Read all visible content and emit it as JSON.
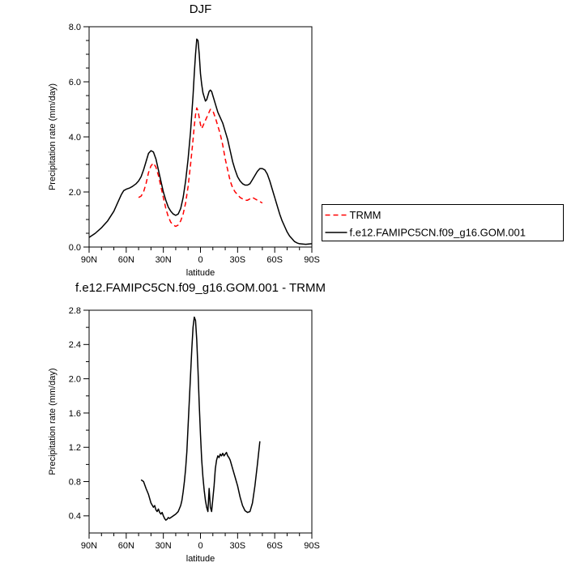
{
  "page": {
    "background": "#ffffff"
  },
  "chart_data": [
    {
      "type": "line",
      "title": "DJF",
      "xlabel": "latitude",
      "ylabel": "Precipitation rate (mm/day)",
      "xlim": [
        90,
        -90
      ],
      "ylim": [
        0.0,
        8.0
      ],
      "grid": false,
      "xminor_step": 10,
      "yminor_step": 0.5,
      "xticks": [
        {
          "v": 90,
          "label": "90N"
        },
        {
          "v": 60,
          "label": "60N"
        },
        {
          "v": 30,
          "label": "30N"
        },
        {
          "v": 0,
          "label": "0"
        },
        {
          "v": -30,
          "label": "30S"
        },
        {
          "v": -60,
          "label": "60S"
        },
        {
          "v": -90,
          "label": "90S"
        }
      ],
      "yticks": [
        {
          "v": 0,
          "label": "0.0"
        },
        {
          "v": 2,
          "label": "2.0"
        },
        {
          "v": 4,
          "label": "4.0"
        },
        {
          "v": 6,
          "label": "6.0"
        },
        {
          "v": 8,
          "label": "8.0"
        }
      ],
      "legend": {
        "show": true,
        "border": true,
        "position": "right-bottom",
        "entries": [
          "TRMM",
          "f.e12.FAMIPC5CN.f09_g16.GOM.001"
        ]
      },
      "series": [
        {
          "name": "TRMM",
          "color": "#ff0000",
          "dashed": true,
          "lat": [
            50,
            48,
            46,
            44,
            42,
            40,
            38,
            36,
            34,
            32,
            30,
            28,
            26,
            24,
            22,
            20,
            18,
            16,
            14,
            12,
            10,
            8,
            6,
            5,
            4,
            3,
            2,
            1,
            0,
            -1,
            -2,
            -4,
            -6,
            -8,
            -10,
            -12,
            -14,
            -16,
            -18,
            -20,
            -22,
            -24,
            -26,
            -28,
            -30,
            -32,
            -34,
            -36,
            -38,
            -40,
            -42,
            -44,
            -46,
            -48,
            -50
          ],
          "values": [
            1.8,
            1.85,
            2.0,
            2.3,
            2.7,
            2.95,
            3.05,
            2.9,
            2.6,
            2.2,
            1.8,
            1.4,
            1.1,
            0.9,
            0.8,
            0.75,
            0.8,
            0.95,
            1.2,
            1.6,
            2.2,
            3.0,
            3.9,
            4.4,
            4.8,
            5.05,
            4.95,
            4.7,
            4.45,
            4.3,
            4.4,
            4.6,
            4.8,
            5.0,
            4.95,
            4.7,
            4.4,
            4.1,
            3.7,
            3.2,
            2.8,
            2.4,
            2.15,
            2.0,
            1.9,
            1.8,
            1.75,
            1.7,
            1.7,
            1.75,
            1.8,
            1.75,
            1.7,
            1.65,
            1.6
          ]
        },
        {
          "name": "f.e12.FAMIPC5CN.f09_g16.GOM.001",
          "color": "#000000",
          "dashed": false,
          "lat": [
            90,
            85,
            80,
            75,
            70,
            67,
            64,
            62,
            60,
            57,
            55,
            52,
            50,
            48,
            46,
            44,
            42,
            40,
            38,
            36,
            34,
            32,
            30,
            28,
            26,
            24,
            22,
            20,
            18,
            16,
            14,
            12,
            10,
            8,
            6,
            5,
            4,
            3,
            2,
            1,
            0,
            -1,
            -2,
            -3,
            -4,
            -5,
            -6,
            -7,
            -8,
            -9,
            -10,
            -12,
            -14,
            -16,
            -18,
            -20,
            -22,
            -24,
            -26,
            -28,
            -30,
            -32,
            -34,
            -36,
            -38,
            -40,
            -42,
            -44,
            -46,
            -48,
            -50,
            -52,
            -54,
            -56,
            -58,
            -60,
            -62,
            -64,
            -66,
            -68,
            -70,
            -72,
            -74,
            -76,
            -78,
            -80,
            -85,
            -90
          ],
          "values": [
            0.35,
            0.5,
            0.7,
            0.95,
            1.3,
            1.6,
            1.9,
            2.05,
            2.1,
            2.15,
            2.2,
            2.3,
            2.4,
            2.55,
            2.8,
            3.1,
            3.4,
            3.5,
            3.45,
            3.2,
            2.8,
            2.4,
            2.0,
            1.7,
            1.45,
            1.3,
            1.2,
            1.15,
            1.2,
            1.4,
            1.8,
            2.4,
            3.2,
            4.2,
            5.5,
            6.3,
            7.0,
            7.55,
            7.5,
            7.0,
            6.3,
            5.9,
            5.6,
            5.45,
            5.3,
            5.35,
            5.5,
            5.65,
            5.7,
            5.65,
            5.5,
            5.2,
            4.9,
            4.7,
            4.5,
            4.2,
            3.9,
            3.5,
            3.1,
            2.8,
            2.55,
            2.4,
            2.3,
            2.25,
            2.25,
            2.3,
            2.45,
            2.6,
            2.75,
            2.85,
            2.85,
            2.8,
            2.65,
            2.4,
            2.1,
            1.8,
            1.5,
            1.2,
            0.95,
            0.75,
            0.55,
            0.4,
            0.3,
            0.2,
            0.15,
            0.12,
            0.1,
            0.12
          ]
        }
      ]
    },
    {
      "type": "line",
      "title": "f.e12.FAMIPC5CN.f09_g16.GOM.001 - TRMM",
      "xlabel": "latitude",
      "ylabel": "Precipitation rate (mm/day)",
      "xlim": [
        90,
        -90
      ],
      "ylim": [
        0.2,
        2.8
      ],
      "grid": false,
      "xminor_step": 10,
      "yminor_step": 0.2,
      "xticks": [
        {
          "v": 90,
          "label": "90N"
        },
        {
          "v": 60,
          "label": "60N"
        },
        {
          "v": 30,
          "label": "30N"
        },
        {
          "v": 0,
          "label": "0"
        },
        {
          "v": -30,
          "label": "30S"
        },
        {
          "v": -60,
          "label": "60S"
        },
        {
          "v": -90,
          "label": "90S"
        }
      ],
      "yticks": [
        {
          "v": 0.4,
          "label": "0.4"
        },
        {
          "v": 0.8,
          "label": "0.8"
        },
        {
          "v": 1.2,
          "label": "1.2"
        },
        {
          "v": 1.6,
          "label": "1.6"
        },
        {
          "v": 2.0,
          "label": "2.0"
        },
        {
          "v": 2.4,
          "label": "2.4"
        },
        {
          "v": 2.8,
          "label": "2.8"
        }
      ],
      "legend": null,
      "series": [
        {
          "name": "f.e12.FAMIPC5CN.f09_g16.GOM.001 - TRMM",
          "color": "#000000",
          "dashed": false,
          "lat": [
            48,
            46,
            44,
            42,
            40,
            38,
            37,
            36,
            35,
            34,
            33,
            32,
            31,
            30,
            29,
            28,
            27,
            26,
            25,
            24,
            22,
            20,
            18,
            16,
            15,
            14,
            13,
            12,
            11,
            10,
            9,
            8,
            7,
            6,
            5,
            4,
            3,
            2,
            1,
            0,
            -1,
            -2,
            -3,
            -4,
            -5,
            -6,
            -7,
            -8,
            -9,
            -10,
            -11,
            -12,
            -13,
            -14,
            -15,
            -16,
            -17,
            -18,
            -19,
            -20,
            -21,
            -22,
            -23,
            -24,
            -25,
            -26,
            -28,
            -30,
            -32,
            -34,
            -36,
            -38,
            -40,
            -42,
            -44,
            -46,
            -48
          ],
          "values": [
            0.82,
            0.8,
            0.72,
            0.65,
            0.55,
            0.5,
            0.52,
            0.47,
            0.45,
            0.48,
            0.44,
            0.42,
            0.44,
            0.4,
            0.37,
            0.35,
            0.36,
            0.38,
            0.37,
            0.38,
            0.4,
            0.42,
            0.45,
            0.52,
            0.58,
            0.68,
            0.8,
            0.95,
            1.15,
            1.45,
            1.75,
            2.05,
            2.35,
            2.6,
            2.72,
            2.68,
            2.45,
            2.1,
            1.7,
            1.35,
            1.05,
            0.85,
            0.7,
            0.58,
            0.5,
            0.45,
            0.72,
            0.5,
            0.45,
            0.6,
            0.75,
            0.95,
            1.05,
            1.1,
            1.08,
            1.12,
            1.1,
            1.13,
            1.1,
            1.12,
            1.14,
            1.1,
            1.08,
            1.05,
            1.0,
            0.95,
            0.85,
            0.75,
            0.62,
            0.52,
            0.46,
            0.44,
            0.45,
            0.55,
            0.75,
            1.0,
            1.27
          ]
        }
      ]
    }
  ]
}
